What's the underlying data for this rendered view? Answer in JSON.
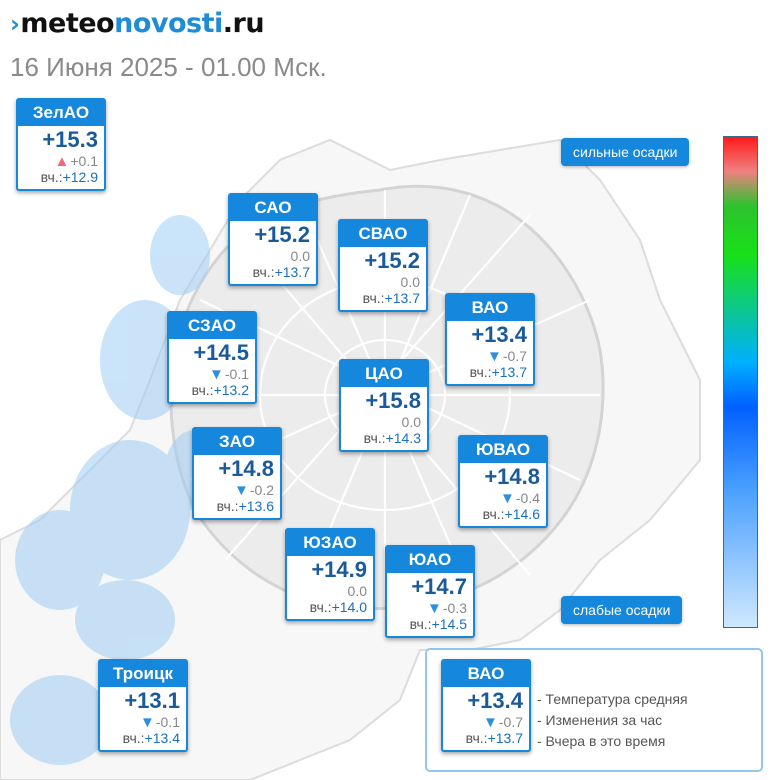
{
  "header": {
    "logo_parts": [
      "meteo",
      "novosti",
      ".ru"
    ],
    "subtitle": "16 Июня 2025 - 01.00 Мск."
  },
  "districts": [
    {
      "id": "zelao",
      "name": "ЗелАО",
      "temp": "+15.3",
      "change": "+0.1",
      "trend": "up",
      "yesterday_label": "вч.:",
      "yesterday": "+12.9"
    },
    {
      "id": "sao",
      "name": "САО",
      "temp": "+15.2",
      "change": "0.0",
      "trend": "none",
      "yesterday_label": "вч.:",
      "yesterday": "+13.7"
    },
    {
      "id": "svao",
      "name": "СВАО",
      "temp": "+15.2",
      "change": "0.0",
      "trend": "none",
      "yesterday_label": "вч.:",
      "yesterday": "+13.7"
    },
    {
      "id": "vao",
      "name": "ВАО",
      "temp": "+13.4",
      "change": "-0.7",
      "trend": "down",
      "yesterday_label": "вч.:",
      "yesterday": "+13.7"
    },
    {
      "id": "szao",
      "name": "СЗАО",
      "temp": "+14.5",
      "change": "-0.1",
      "trend": "down",
      "yesterday_label": "вч.:",
      "yesterday": "+13.2"
    },
    {
      "id": "tsao",
      "name": "ЦАО",
      "temp": "+15.8",
      "change": "0.0",
      "trend": "none",
      "yesterday_label": "вч.:",
      "yesterday": "+14.3"
    },
    {
      "id": "zao",
      "name": "ЗАО",
      "temp": "+14.8",
      "change": "-0.2",
      "trend": "down",
      "yesterday_label": "вч.:",
      "yesterday": "+13.6"
    },
    {
      "id": "yuvao",
      "name": "ЮВАО",
      "temp": "+14.8",
      "change": "-0.4",
      "trend": "down",
      "yesterday_label": "вч.:",
      "yesterday": "+14.6"
    },
    {
      "id": "yuzao",
      "name": "ЮЗАО",
      "temp": "+14.9",
      "change": "0.0",
      "trend": "none",
      "yesterday_label": "вч.:",
      "yesterday": "+14.0"
    },
    {
      "id": "yuao",
      "name": "ЮАО",
      "temp": "+14.7",
      "change": "-0.3",
      "trend": "down",
      "yesterday_label": "вч.:",
      "yesterday": "+14.5"
    },
    {
      "id": "troitsk",
      "name": "Троицк",
      "temp": "+13.1",
      "change": "-0.1",
      "trend": "down",
      "yesterday_label": "вч.:",
      "yesterday": "+13.4"
    }
  ],
  "precipitation_scale": {
    "top_label": "сильные осадки",
    "bottom_label": "слабые осадки",
    "colors": [
      "#ff1a1a",
      "#2ec22e",
      "#00b0ff",
      "#0060ff",
      "#cfe8ff"
    ]
  },
  "legend": {
    "sample": {
      "name": "ВАО",
      "temp": "+13.4",
      "change": "-0.7",
      "trend": "down",
      "yesterday_label": "вч.:",
      "yesterday": "+13.7"
    },
    "lines": [
      "- Температура средняя",
      "- Изменения за час",
      "- Вчера в это время"
    ]
  },
  "colors": {
    "accent": "#1587dc",
    "temp_text": "#1a5a9a",
    "trend_down": "#2b8fdc",
    "trend_up": "#ef6b73"
  }
}
